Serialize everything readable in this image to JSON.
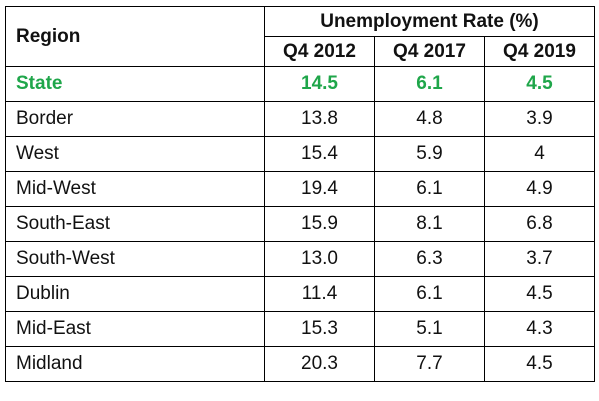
{
  "table": {
    "region_header": "Region",
    "group_header": "Unemployment Rate (%)",
    "periods": [
      "Q4 2012",
      "Q4 2017",
      "Q4 2019"
    ],
    "rows": [
      {
        "region": "State",
        "values": [
          "14.5",
          "6.1",
          "4.5"
        ],
        "highlight": true
      },
      {
        "region": "Border",
        "values": [
          "13.8",
          "4.8",
          "3.9"
        ]
      },
      {
        "region": "West",
        "values": [
          "15.4",
          "5.9",
          "4"
        ]
      },
      {
        "region": "Mid-West",
        "values": [
          "19.4",
          "6.1",
          "4.9"
        ]
      },
      {
        "region": "South-East",
        "values": [
          "15.9",
          "8.1",
          "6.8"
        ]
      },
      {
        "region": "South-West",
        "values": [
          "13.0",
          "6.3",
          "3.7"
        ]
      },
      {
        "region": "Dublin",
        "values": [
          "11.4",
          "6.1",
          "4.5"
        ]
      },
      {
        "region": "Mid-East",
        "values": [
          "15.3",
          "5.1",
          "4.3"
        ]
      },
      {
        "region": "Midland",
        "values": [
          "20.3",
          "7.7",
          "4.5"
        ]
      }
    ],
    "highlight_color": "#1fa64a"
  }
}
